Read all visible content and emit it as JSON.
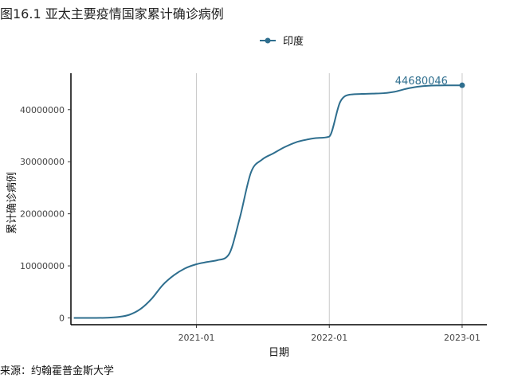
{
  "chart_data": {
    "type": "line",
    "title": "图16.1 亚太主要疫情国家累计确诊病例",
    "xlabel": "日期",
    "ylabel": "累计确诊病例",
    "source": "来源：约翰霍普金斯大学",
    "legend_position": "top",
    "grid": "vertical major gridlines only",
    "x_ticks": [
      "2021-01",
      "2022-01",
      "2023-01"
    ],
    "y_ticks": [
      0,
      10000000,
      20000000,
      30000000,
      40000000
    ],
    "y_tick_labels": [
      "0",
      "10000000",
      "20000000",
      "30000000",
      "40000000"
    ],
    "xlim": [
      "2020-01-22",
      "2023-03-10"
    ],
    "ylim": [
      -1300000,
      47000000
    ],
    "end_label": "44680046",
    "series": [
      {
        "name": "印度",
        "color": "#2e6e8e",
        "points": [
          [
            "2020-01-30",
            0
          ],
          [
            "2020-03-31",
            1400
          ],
          [
            "2020-04-30",
            35000
          ],
          [
            "2020-05-31",
            190000
          ],
          [
            "2020-06-30",
            590000
          ],
          [
            "2020-07-31",
            1700000
          ],
          [
            "2020-08-31",
            3700000
          ],
          [
            "2020-09-30",
            6300000
          ],
          [
            "2020-10-31",
            8200000
          ],
          [
            "2020-11-30",
            9500000
          ],
          [
            "2020-12-31",
            10300000
          ],
          [
            "2021-01-31",
            10750000
          ],
          [
            "2021-02-28",
            11100000
          ],
          [
            "2021-03-31",
            12200000
          ],
          [
            "2021-04-30",
            19200000
          ],
          [
            "2021-05-31",
            28000000
          ],
          [
            "2021-06-30",
            30400000
          ],
          [
            "2021-07-31",
            31600000
          ],
          [
            "2021-08-31",
            32800000
          ],
          [
            "2021-09-30",
            33700000
          ],
          [
            "2021-10-31",
            34250000
          ],
          [
            "2021-11-30",
            34570000
          ],
          [
            "2021-12-31",
            34800000
          ],
          [
            "2022-01-31",
            41500000
          ],
          [
            "2022-02-28",
            42900000
          ],
          [
            "2022-03-31",
            43020000
          ],
          [
            "2022-04-30",
            43080000
          ],
          [
            "2022-05-31",
            43170000
          ],
          [
            "2022-06-30",
            43450000
          ],
          [
            "2022-07-31",
            44000000
          ],
          [
            "2022-08-31",
            44400000
          ],
          [
            "2022-09-30",
            44600000
          ],
          [
            "2022-10-31",
            44650000
          ],
          [
            "2022-11-30",
            44670000
          ],
          [
            "2022-12-31",
            44677000
          ],
          [
            "2023-01-01",
            44680046
          ]
        ]
      }
    ]
  }
}
